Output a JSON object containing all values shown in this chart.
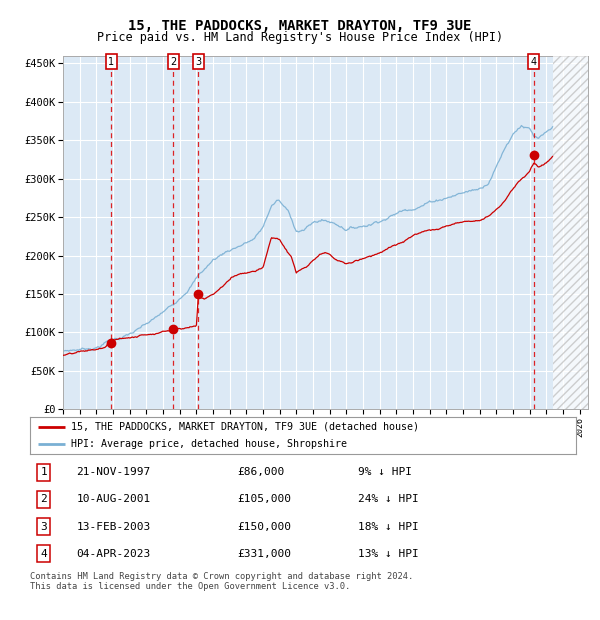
{
  "title": "15, THE PADDOCKS, MARKET DRAYTON, TF9 3UE",
  "subtitle": "Price paid vs. HM Land Registry's House Price Index (HPI)",
  "title_fontsize": 10,
  "subtitle_fontsize": 8.5,
  "plot_bg_color": "#dce9f5",
  "grid_color": "#ffffff",
  "ylim": [
    0,
    460000
  ],
  "xlim_start": 1995.0,
  "xlim_end": 2026.5,
  "yticks": [
    0,
    50000,
    100000,
    150000,
    200000,
    250000,
    300000,
    350000,
    400000,
    450000
  ],
  "ytick_labels": [
    "£0",
    "£50K",
    "£100K",
    "£150K",
    "£200K",
    "£250K",
    "£300K",
    "£350K",
    "£400K",
    "£450K"
  ],
  "sales": [
    {
      "label": "1",
      "date": 1997.89,
      "price": 86000
    },
    {
      "label": "2",
      "date": 2001.61,
      "price": 105000
    },
    {
      "label": "3",
      "date": 2003.12,
      "price": 150000
    },
    {
      "label": "4",
      "date": 2023.25,
      "price": 331000
    }
  ],
  "legend_entries": [
    "15, THE PADDOCKS, MARKET DRAYTON, TF9 3UE (detached house)",
    "HPI: Average price, detached house, Shropshire"
  ],
  "table_rows": [
    {
      "num": "1",
      "date": "21-NOV-1997",
      "price": "£86,000",
      "hpi": "9% ↓ HPI"
    },
    {
      "num": "2",
      "date": "10-AUG-2001",
      "price": "£105,000",
      "hpi": "24% ↓ HPI"
    },
    {
      "num": "3",
      "date": "13-FEB-2003",
      "price": "£150,000",
      "hpi": "18% ↓ HPI"
    },
    {
      "num": "4",
      "date": "04-APR-2023",
      "price": "£331,000",
      "hpi": "13% ↓ HPI"
    }
  ],
  "footer": "Contains HM Land Registry data © Crown copyright and database right 2024.\nThis data is licensed under the Open Government Licence v3.0.",
  "red_line_color": "#cc0000",
  "blue_line_color": "#7ab0d4",
  "hatch_start": 2024.42
}
